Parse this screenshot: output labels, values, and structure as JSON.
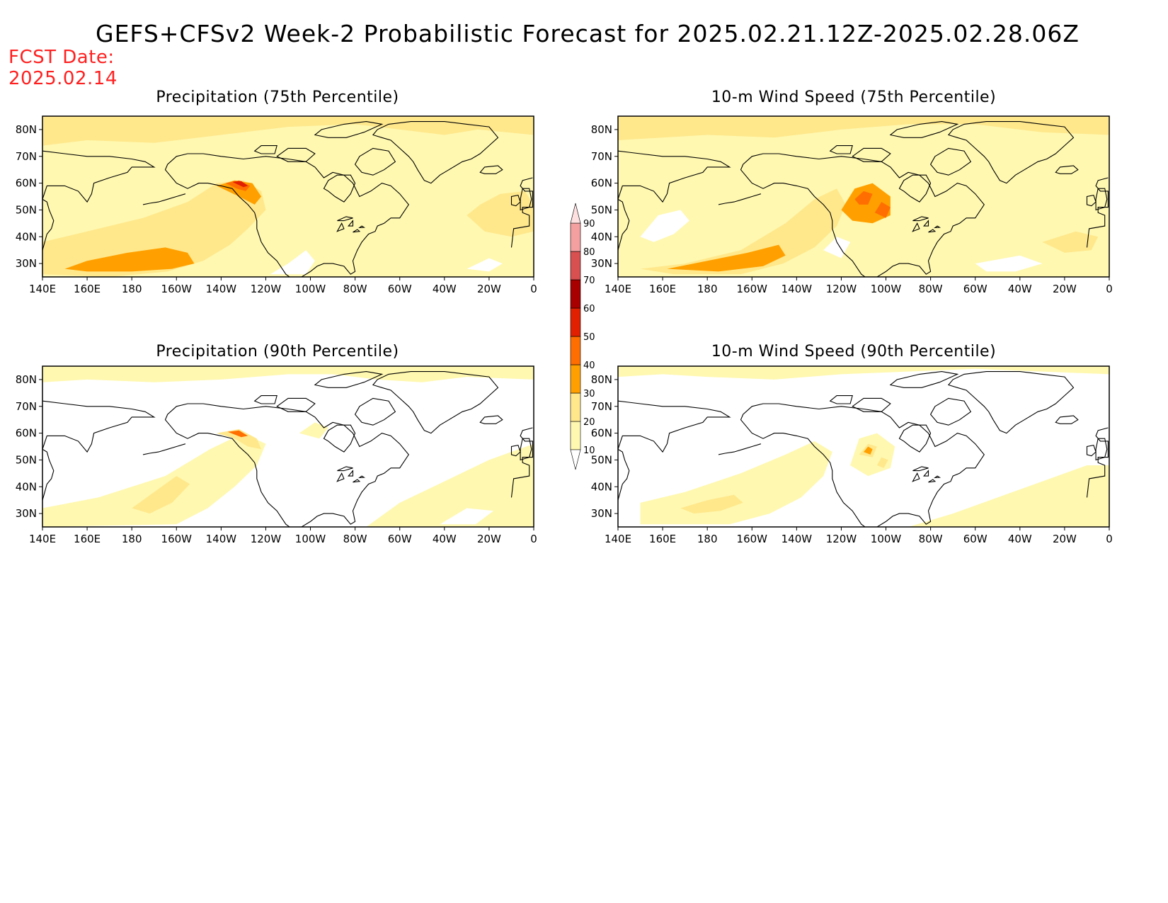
{
  "title": "GEFS+CFSv2 Week-2 Probabilistic Forecast for 2025.02.21.12Z-2025.02.28.06Z",
  "fcst_date_label": "FCST Date:",
  "fcst_date": "2025.02.14",
  "panels": [
    {
      "title": "Precipitation (75th Percentile)",
      "variable": "precipitation",
      "percentile": 75
    },
    {
      "title": "10-m Wind Speed (75th Percentile)",
      "variable": "wind",
      "percentile": 75
    },
    {
      "title": "Precipitation (90th Percentile)",
      "variable": "precipitation",
      "percentile": 90
    },
    {
      "title": "10-m Wind Speed (90th Percentile)",
      "variable": "wind",
      "percentile": 90
    }
  ],
  "lat_ticks": [
    "80N",
    "70N",
    "60N",
    "50N",
    "40N",
    "30N"
  ],
  "lon_ticks": [
    "140E",
    "160E",
    "180",
    "160W",
    "140W",
    "120W",
    "100W",
    "80W",
    "60W",
    "40W",
    "20W",
    "0"
  ],
  "colorbar": {
    "labels": [
      "10",
      "20",
      "30",
      "40",
      "50",
      "60",
      "70",
      "80",
      "90"
    ],
    "colors": [
      "#fff8b0",
      "#ffe88c",
      "#ffa000",
      "#ff6e00",
      "#e02000",
      "#a80000",
      "#d85050",
      "#f4a0a0",
      "#ffe0e0"
    ]
  }
}
